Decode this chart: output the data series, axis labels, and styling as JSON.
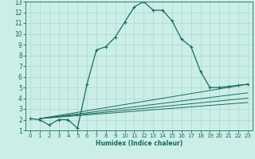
{
  "xlabel": "Humidex (Indice chaleur)",
  "bg_color": "#cceee8",
  "grid_color": "#aad8d0",
  "line_color": "#1a6b5a",
  "xlim": [
    -0.5,
    23.5
  ],
  "ylim": [
    1,
    13
  ],
  "xticks": [
    0,
    1,
    2,
    3,
    4,
    5,
    6,
    7,
    8,
    9,
    10,
    11,
    12,
    13,
    14,
    15,
    16,
    17,
    18,
    19,
    20,
    21,
    22,
    23
  ],
  "yticks": [
    1,
    2,
    3,
    4,
    5,
    6,
    7,
    8,
    9,
    10,
    11,
    12,
    13
  ],
  "main_curve_x": [
    0,
    1,
    2,
    3,
    4,
    5,
    6,
    7,
    8,
    9,
    10,
    11,
    12,
    13,
    14,
    15,
    16,
    17,
    18,
    19,
    20,
    21,
    22,
    23
  ],
  "main_curve_y": [
    2.1,
    2.0,
    1.5,
    2.0,
    2.0,
    1.2,
    5.3,
    8.5,
    8.8,
    9.7,
    11.1,
    12.5,
    13.0,
    12.2,
    12.2,
    11.2,
    9.5,
    8.8,
    6.5,
    5.0,
    5.0,
    5.1,
    5.2,
    5.3
  ],
  "reg_lines": [
    {
      "x": [
        1,
        23
      ],
      "y": [
        2.1,
        5.3
      ]
    },
    {
      "x": [
        1,
        23
      ],
      "y": [
        2.1,
        4.5
      ]
    },
    {
      "x": [
        1,
        23
      ],
      "y": [
        2.1,
        3.6
      ]
    },
    {
      "x": [
        1,
        23
      ],
      "y": [
        2.1,
        4.0
      ]
    }
  ]
}
